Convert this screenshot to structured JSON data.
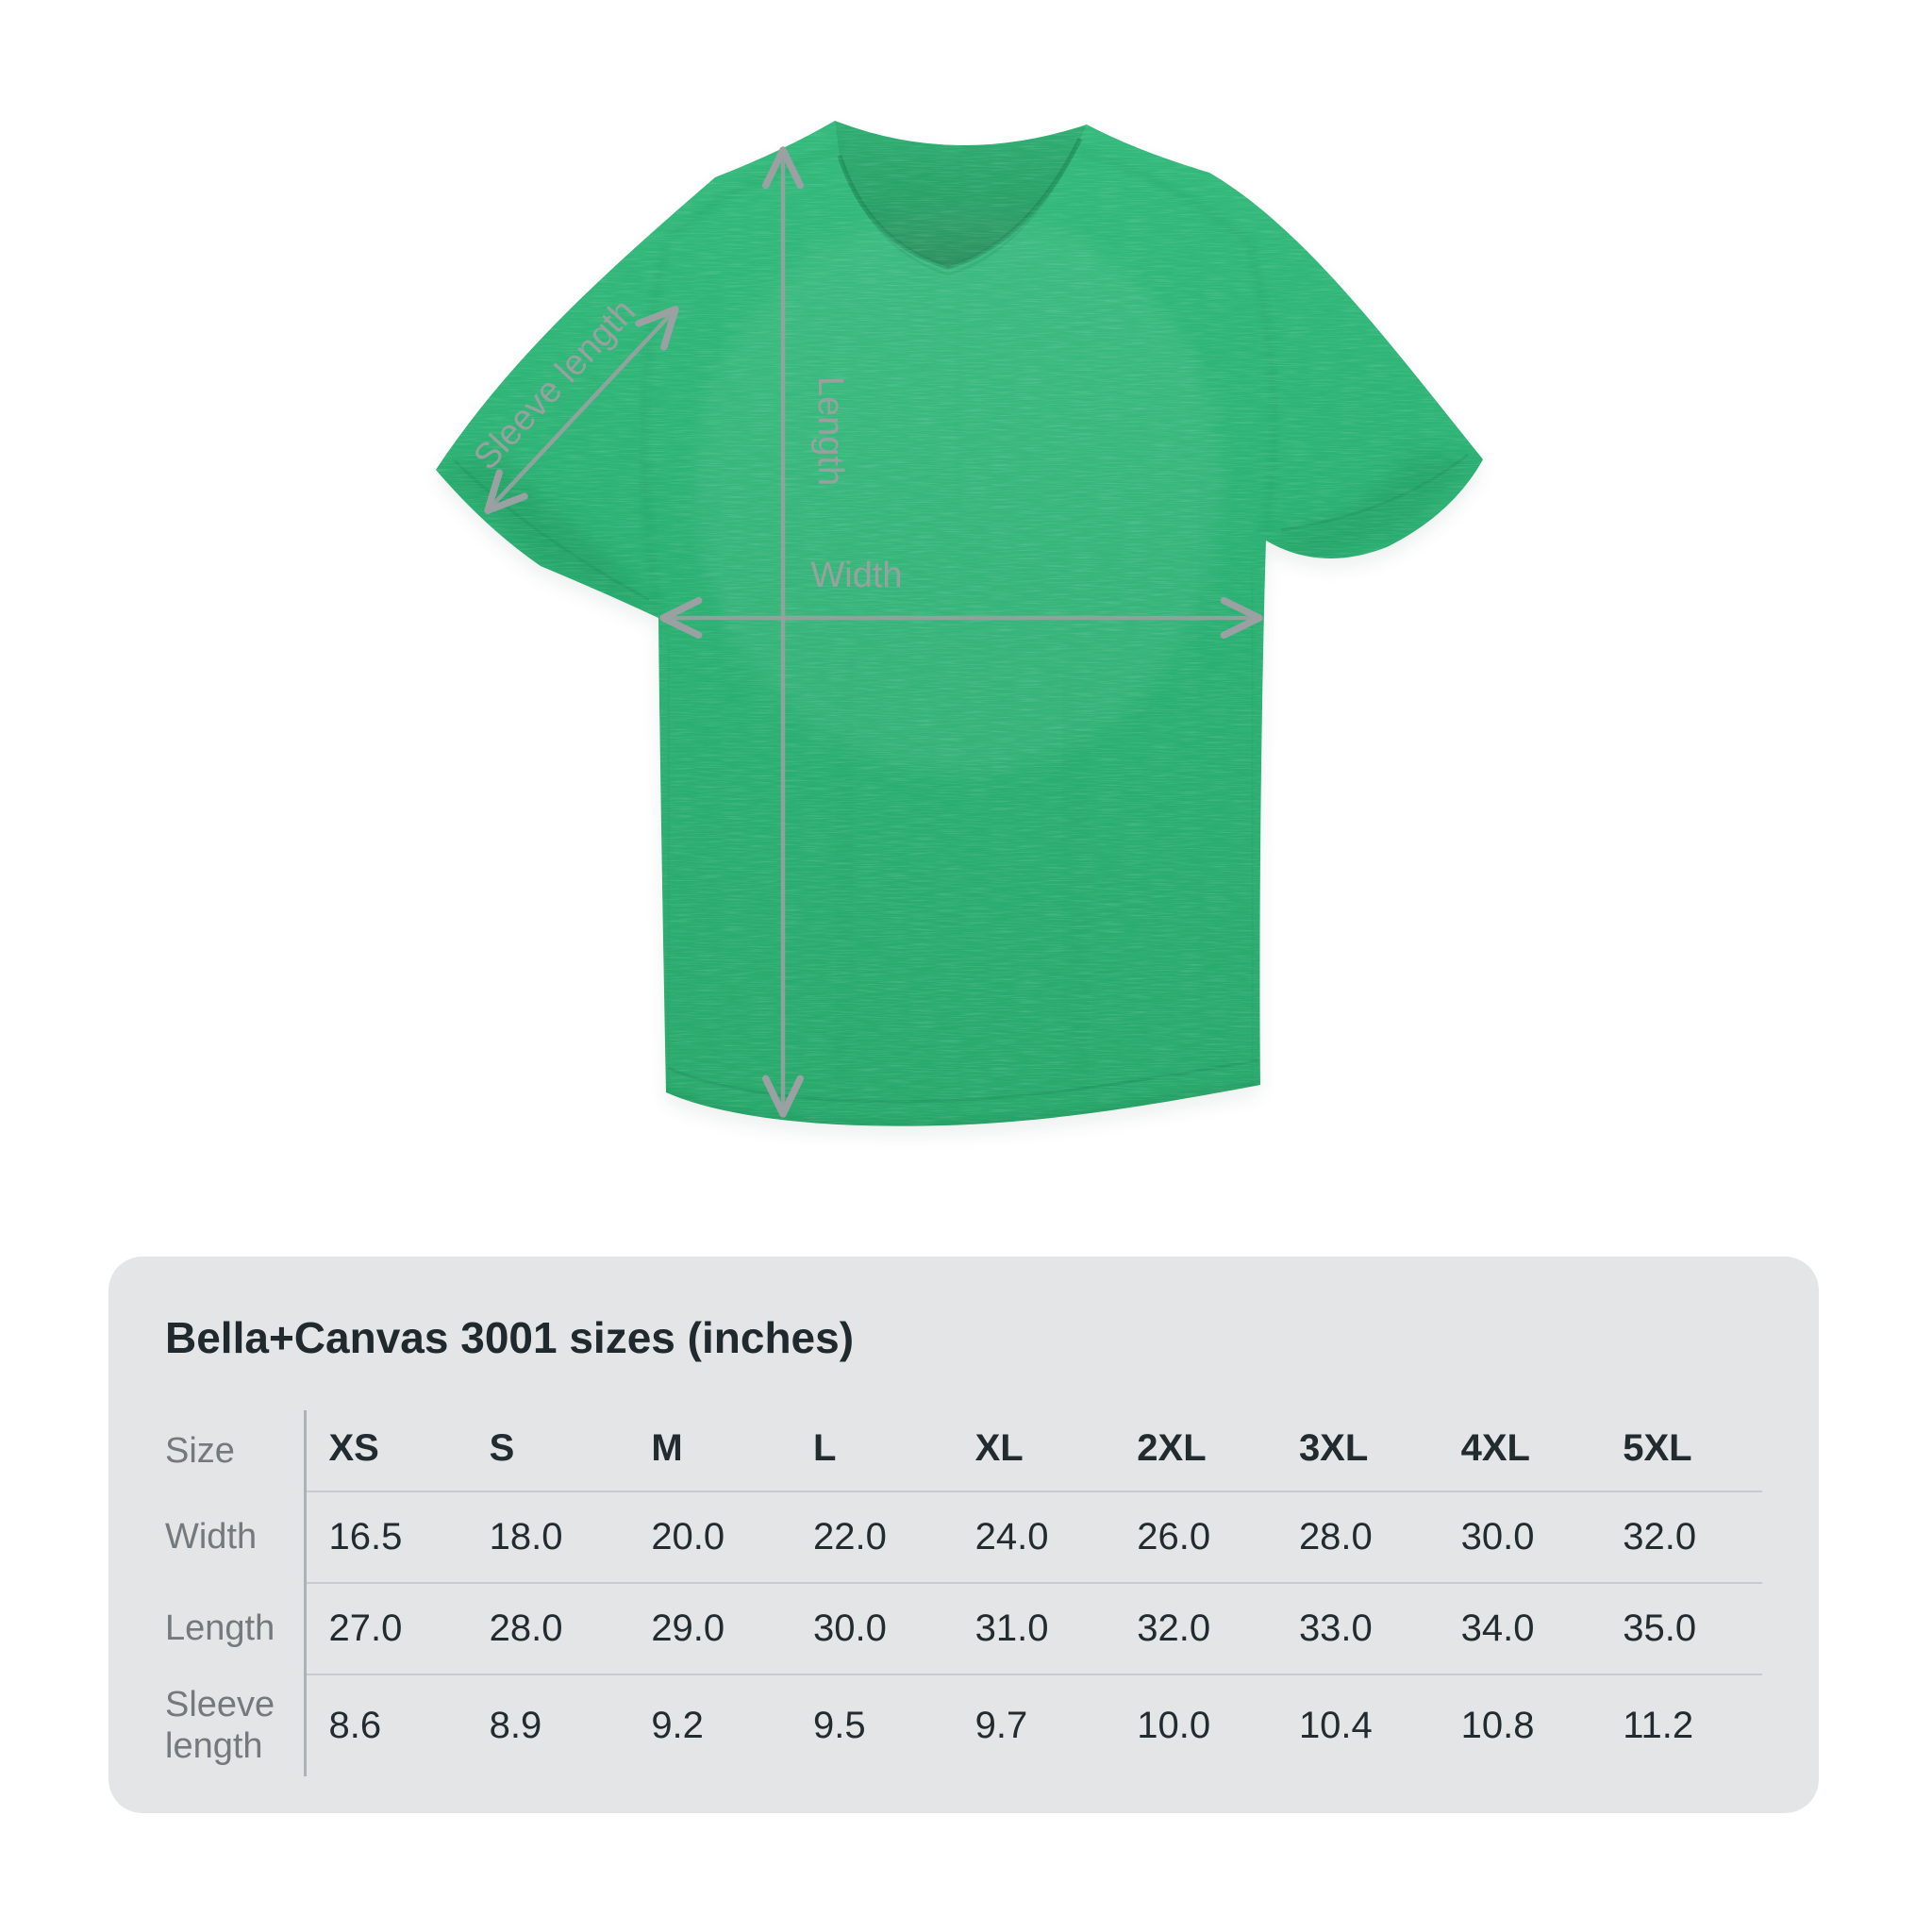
{
  "diagram": {
    "measurement_labels": {
      "sleeve_length": "Sleeve length",
      "length": "Length",
      "width": "Width"
    },
    "shirt_color_hex": "#2bb173",
    "arrow_color_hex": "#9ba1a2"
  },
  "size_chart": {
    "title": "Bella+Canvas 3001 sizes (inches)",
    "columns": [
      "Size",
      "XS",
      "S",
      "M",
      "L",
      "XL",
      "2XL",
      "3XL",
      "4XL",
      "5XL"
    ],
    "rows": [
      {
        "label": "Width",
        "values": [
          "16.5",
          "18.0",
          "20.0",
          "22.0",
          "24.0",
          "26.0",
          "28.0",
          "30.0",
          "32.0"
        ]
      },
      {
        "label": "Length",
        "values": [
          "27.0",
          "28.0",
          "29.0",
          "30.0",
          "31.0",
          "32.0",
          "33.0",
          "34.0",
          "35.0"
        ]
      },
      {
        "label": "Sleeve length",
        "values": [
          "8.6",
          "8.9",
          "9.2",
          "9.5",
          "9.7",
          "10.0",
          "10.4",
          "10.8",
          "11.2"
        ]
      }
    ]
  },
  "chart_data": {
    "type": "table",
    "title": "Bella+Canvas 3001 sizes (inches)",
    "categories": [
      "XS",
      "S",
      "M",
      "L",
      "XL",
      "2XL",
      "3XL",
      "4XL",
      "5XL"
    ],
    "series": [
      {
        "name": "Width",
        "values": [
          16.5,
          18.0,
          20.0,
          22.0,
          24.0,
          26.0,
          28.0,
          30.0,
          32.0
        ]
      },
      {
        "name": "Length",
        "values": [
          27.0,
          28.0,
          29.0,
          30.0,
          31.0,
          32.0,
          33.0,
          34.0,
          35.0
        ]
      },
      {
        "name": "Sleeve length",
        "values": [
          8.6,
          8.9,
          9.2,
          9.5,
          9.7,
          10.0,
          10.4,
          10.8,
          11.2
        ]
      }
    ]
  }
}
